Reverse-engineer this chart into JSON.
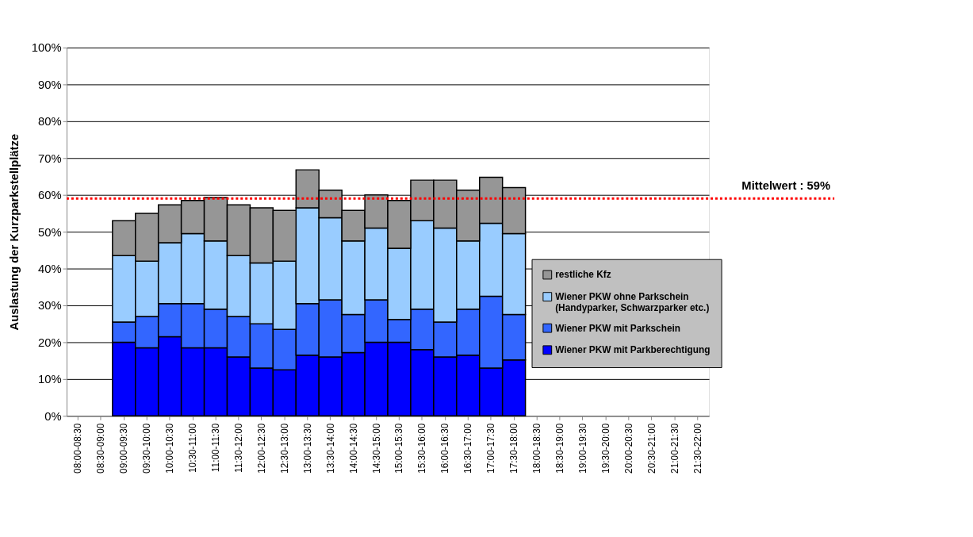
{
  "chart_data": {
    "type": "bar",
    "stacked": true,
    "ylabel": "Auslastung der Kurzparkstellplätze",
    "categories": [
      "08:00-08:30",
      "08:30-09:00",
      "09:00-09:30",
      "09:30-10:00",
      "10:00-10:30",
      "10:30-11:00",
      "11:00-11:30",
      "11:30-12:00",
      "12:00-12:30",
      "12:30-13:00",
      "13:00-13:30",
      "13:30-14:00",
      "14:00-14:30",
      "14:30-15:00",
      "15:00-15:30",
      "15:30-16:00",
      "16:00-16:30",
      "16:30-17:00",
      "17:00-17:30",
      "17:30-18:00",
      "18:00-18:30",
      "18:30-19:00",
      "19:00-19:30",
      "19:30-20:00",
      "20:00-20:30",
      "20:30-21:00",
      "21:00-21:30",
      "21:30-22:00"
    ],
    "series": [
      {
        "name": "Wiener PKW mit Parkberechtigung",
        "color": "#0000ff",
        "values": [
          null,
          null,
          20,
          18.5,
          21.5,
          18.5,
          18.5,
          16,
          13,
          12.5,
          16.5,
          16,
          17.2,
          20,
          20,
          18,
          16,
          16.5,
          13,
          15.2,
          null,
          null,
          null,
          null,
          null,
          null,
          null,
          null
        ]
      },
      {
        "name": "Wiener PKW mit Parkschein",
        "color": "#3366ff",
        "values": [
          null,
          null,
          5.5,
          8.5,
          9,
          12,
          10.5,
          11,
          12,
          11,
          14,
          15.5,
          10.3,
          11.5,
          6.2,
          11,
          9.5,
          12.5,
          19.5,
          12.3,
          null,
          null,
          null,
          null,
          null,
          null,
          null,
          null
        ]
      },
      {
        "name": "Wiener PKW ohne Parkschein\n(Handyparker, Schwarzparker etc.)",
        "color": "#99ccff",
        "values": [
          null,
          null,
          18,
          15,
          16.5,
          19,
          18.5,
          16.5,
          16.5,
          18.5,
          26,
          22.3,
          20,
          19.5,
          19.3,
          24,
          25.5,
          18.5,
          19.8,
          22,
          null,
          null,
          null,
          null,
          null,
          null,
          null,
          null
        ]
      },
      {
        "name": "restliche Kfz",
        "color": "#969696",
        "values": [
          null,
          null,
          9.5,
          13,
          10.3,
          9,
          11.8,
          13.8,
          15,
          13.8,
          10.3,
          7.5,
          8.3,
          9,
          13,
          11,
          13,
          13.8,
          12.5,
          12.5,
          null,
          null,
          null,
          null,
          null,
          null,
          null,
          null
        ]
      }
    ],
    "ylim": [
      0,
      100
    ],
    "yticks": [
      {
        "value": 0,
        "label": "0%"
      },
      {
        "value": 10,
        "label": "10%"
      },
      {
        "value": 20,
        "label": "20%"
      },
      {
        "value": 30,
        "label": "30%"
      },
      {
        "value": 40,
        "label": "40%"
      },
      {
        "value": 50,
        "label": "50%"
      },
      {
        "value": 60,
        "label": "60%"
      },
      {
        "value": 70,
        "label": "70%"
      },
      {
        "value": 80,
        "label": "80%"
      },
      {
        "value": 90,
        "label": "90%"
      },
      {
        "value": 100,
        "label": "100%"
      }
    ],
    "grid": "y",
    "legend": "bottom right",
    "ref_lines": [
      {
        "axis": "y",
        "value": 59,
        "label": "Mittelwert :  59%",
        "color": "#ff0000",
        "line_style": "dotted"
      }
    ]
  }
}
